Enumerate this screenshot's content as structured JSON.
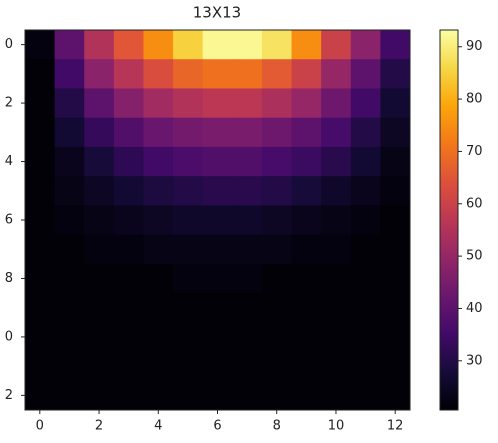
{
  "chart_data": {
    "type": "heatmap",
    "title": "13X13",
    "cmap": "inferno",
    "values": [
      [
        22,
        40,
        55,
        65,
        75,
        85,
        92,
        92,
        88,
        75,
        60,
        48,
        35
      ],
      [
        21,
        35,
        48,
        56,
        63,
        68,
        70,
        70,
        66,
        60,
        50,
        40,
        30
      ],
      [
        21,
        30,
        40,
        47,
        52,
        55,
        57,
        57,
        54,
        50,
        43,
        35,
        27
      ],
      [
        21,
        27,
        33,
        38,
        42,
        44,
        45,
        45,
        43,
        40,
        36,
        30,
        25
      ],
      [
        21,
        24,
        28,
        32,
        35,
        37,
        38,
        38,
        36,
        34,
        31,
        27,
        23
      ],
      [
        21,
        23,
        25,
        27,
        29,
        30,
        31,
        31,
        30,
        28,
        26,
        24,
        22
      ],
      [
        21,
        22,
        23,
        24,
        25,
        26,
        26,
        26,
        25,
        24,
        23,
        22,
        21
      ],
      [
        21,
        21,
        22,
        22,
        23,
        23,
        23,
        23,
        23,
        22,
        22,
        21,
        21
      ],
      [
        21,
        21,
        21,
        21,
        21,
        22,
        22,
        22,
        21,
        21,
        21,
        21,
        21
      ],
      [
        21,
        21,
        21,
        21,
        21,
        21,
        21,
        21,
        21,
        21,
        21,
        21,
        21
      ],
      [
        21,
        21,
        21,
        21,
        21,
        21,
        21,
        21,
        21,
        21,
        21,
        21,
        21
      ],
      [
        21,
        21,
        21,
        21,
        21,
        21,
        21,
        21,
        21,
        21,
        21,
        21,
        21
      ],
      [
        21,
        21,
        21,
        21,
        21,
        21,
        21,
        21,
        21,
        21,
        21,
        21,
        21
      ]
    ],
    "xlim": [
      -0.5,
      12.5
    ],
    "xticks": [
      0,
      2,
      4,
      6,
      8,
      10,
      12
    ],
    "ylim": [
      -0.5,
      12.5
    ],
    "yticks": [
      0,
      2,
      4,
      6,
      8,
      {
        "value": 10,
        "label": "0"
      },
      {
        "value": 12,
        "label": "2"
      }
    ],
    "colorbar_lim": [
      20.6,
      93.2
    ],
    "colorbar_ticks": [
      30,
      40,
      50,
      60,
      70,
      80,
      90
    ]
  }
}
